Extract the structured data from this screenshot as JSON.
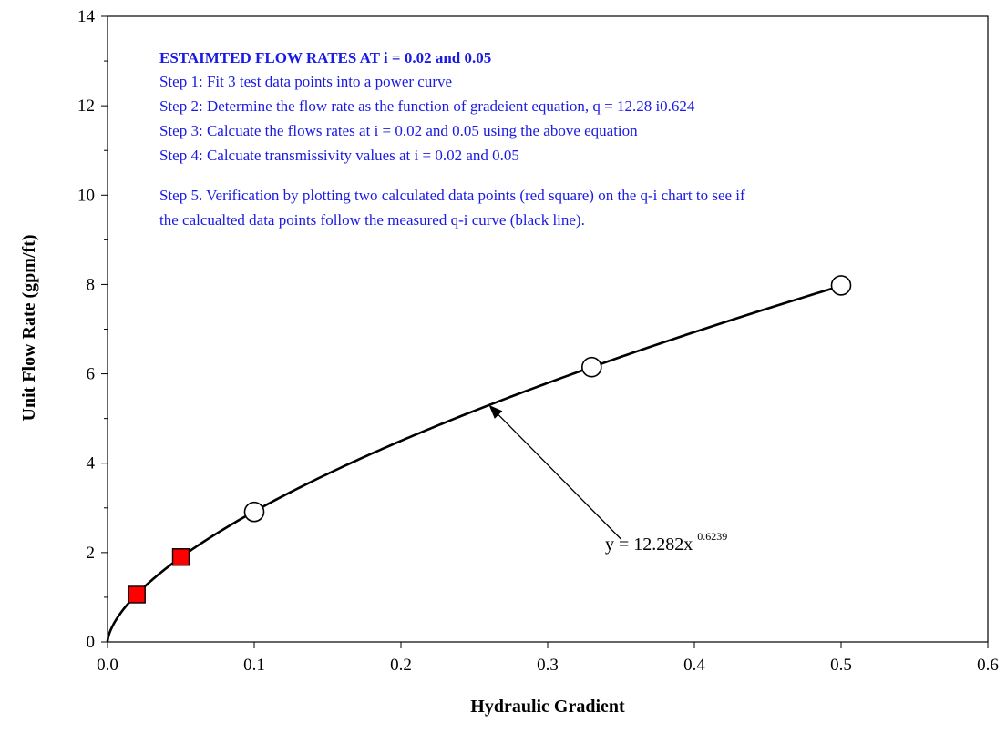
{
  "chart_data": {
    "type": "scatter",
    "xlabel": "Hydraulic Gradient",
    "ylabel": "Unit Flow Rate (gpm/ft)",
    "xlim": [
      0,
      0.6
    ],
    "ylim": [
      0,
      14
    ],
    "xticks": [
      0,
      0.1,
      0.2,
      0.3,
      0.4,
      0.5,
      0.6
    ],
    "xtick_labels": [
      "0.0",
      "0.1",
      "0.2",
      "0.3",
      "0.4",
      "0.5",
      "0.6"
    ],
    "yticks": [
      0,
      2,
      4,
      6,
      8,
      10,
      12,
      14
    ],
    "ytick_labels": [
      "0",
      "2",
      "4",
      "6",
      "8",
      "10",
      "12",
      "14"
    ],
    "grid": false,
    "series": [
      {
        "marker": "open-circle",
        "color": "#000000",
        "x": [
          0.1,
          0.33,
          0.5
        ],
        "y": [
          2.91,
          6.15,
          7.98
        ]
      },
      {
        "marker": "filled-square",
        "color": "#ff0000",
        "x": [
          0.02,
          0.05
        ],
        "y": [
          1.06,
          1.9
        ]
      }
    ],
    "trendline": {
      "type": "power",
      "coefficient": 12.282,
      "exponent": 0.6239,
      "x_range": [
        0,
        0.5
      ],
      "color": "#000000",
      "label_main": "y = 12.282x",
      "label_exponent": "0.6239",
      "arrow_from": [
        0.35,
        2.3
      ],
      "arrow_to": [
        0.26,
        5.3
      ]
    },
    "annotation": {
      "color": "#1a1ae6",
      "title": "ESTAIMTED FLOW RATES AT i = 0.02 and 0.05",
      "lines": [
        "Step 1: Fit 3 test data points into a power curve",
        "Step 2: Determine the flow rate as the function of gradeient equation, q = 12.28 i0.624",
        "Step 3: Calcuate the flows rates at i = 0.02 and 0.05 using the above equation",
        "Step 4: Calcuate transmissivity values at i = 0.02 and 0.05",
        "Step 5.  Verification by plotting two calculated data points (red square) on the q-i chart to see if",
        "the calcualted data points follow the measured q-i curve (black line)."
      ]
    }
  }
}
